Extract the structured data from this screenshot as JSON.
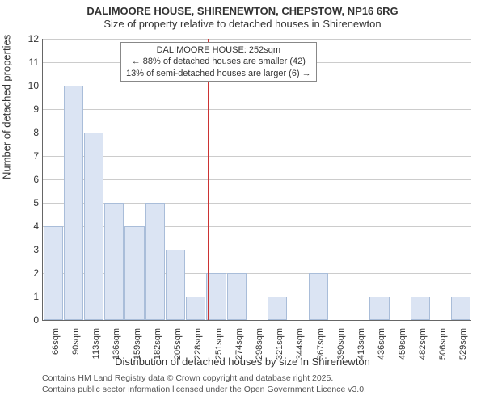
{
  "title": "DALIMOORE HOUSE, SHIRENEWTON, CHEPSTOW, NP16 6RG",
  "subtitle": "Size of property relative to detached houses in Shirenewton",
  "chart": {
    "type": "histogram",
    "y_axis_title": "Number of detached properties",
    "x_axis_title": "Distribution of detached houses by size in Shirenewton",
    "ylim": [
      0,
      12
    ],
    "ytick_step": 1,
    "categories": [
      "66sqm",
      "90sqm",
      "113sqm",
      "136sqm",
      "159sqm",
      "182sqm",
      "205sqm",
      "228sqm",
      "251sqm",
      "274sqm",
      "298sqm",
      "321sqm",
      "344sqm",
      "367sqm",
      "390sqm",
      "413sqm",
      "436sqm",
      "459sqm",
      "482sqm",
      "506sqm",
      "529sqm"
    ],
    "values": [
      4,
      10,
      8,
      5,
      4,
      5,
      3,
      1,
      2,
      2,
      0,
      1,
      0,
      2,
      0,
      0,
      1,
      0,
      1,
      0,
      1
    ],
    "bar_fill": "#dbe4f3",
    "bar_border": "#a9bdd9",
    "grid_color": "#cccccc",
    "background_color": "#ffffff",
    "marker": {
      "position_index": 8.1,
      "color": "#cc3333",
      "annotation_lines": [
        "DALIMOORE HOUSE: 252sqm",
        "← 88% of detached houses are smaller (42)",
        "13% of semi-detached houses are larger (6) →"
      ]
    }
  },
  "footer_line1": "Contains HM Land Registry data © Crown copyright and database right 2025.",
  "footer_line2": "Contains public sector information licensed under the Open Government Licence v3.0."
}
